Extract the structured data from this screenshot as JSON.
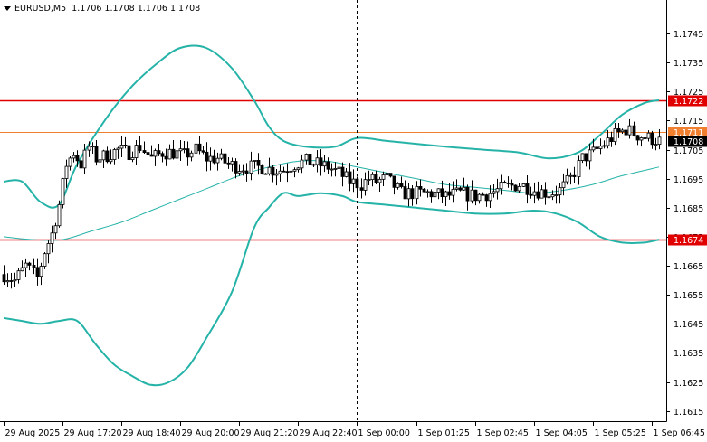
{
  "header": {
    "symbol": "EURUSD,M5",
    "ohlc": "1.1706 1.1708 1.1706 1.1708"
  },
  "chart_data": {
    "type": "candlestick",
    "symbol": "EURUSD",
    "timeframe": "M5",
    "ylim": [
      1.16115,
      1.17565
    ],
    "y_ticks": [
      "1.1745",
      "1.1735",
      "1.1725",
      "1.1715",
      "1.1705",
      "1.1695",
      "1.1685",
      "1.1675",
      "1.1665",
      "1.1655",
      "1.1645",
      "1.1635",
      "1.1625",
      "1.1615"
    ],
    "x_ticks": [
      "29 Aug 2025",
      "29 Aug 17:20",
      "29 Aug 18:40",
      "29 Aug 20:00",
      "29 Aug 21:20",
      "29 Aug 22:40",
      "1 Sep 00:00",
      "1 Sep 01:25",
      "1 Sep 02:45",
      "1 Sep 04:05",
      "1 Sep 05:25",
      "1 Sep 06:45"
    ],
    "x_tick_index": [
      0,
      16,
      32,
      48,
      64,
      80,
      96,
      112,
      128,
      144,
      160,
      176
    ],
    "bar_count": 179,
    "session_separator_index": 96,
    "price_levels": [
      {
        "value": 1.1722,
        "label": "1.1722",
        "color": "#e00000"
      },
      {
        "value": 1.1711,
        "label": "1.1711",
        "color": "#f08030"
      },
      {
        "value": 1.1708,
        "label": "1.1708",
        "color": "#000000"
      },
      {
        "value": 1.1674,
        "label": "1.1674",
        "color": "#e00000"
      }
    ],
    "bollinger_upper": [
      [
        0,
        1.1694
      ],
      [
        5,
        1.1694
      ],
      [
        10,
        1.1687
      ],
      [
        15,
        1.1686
      ],
      [
        20,
        1.17
      ],
      [
        28,
        1.1716
      ],
      [
        35,
        1.1727
      ],
      [
        42,
        1.1735
      ],
      [
        48,
        1.174
      ],
      [
        55,
        1.174
      ],
      [
        62,
        1.1733
      ],
      [
        68,
        1.1722
      ],
      [
        72,
        1.1713
      ],
      [
        76,
        1.1708
      ],
      [
        82,
        1.1706
      ],
      [
        90,
        1.1706
      ],
      [
        96,
        1.1709
      ],
      [
        104,
        1.1708
      ],
      [
        112,
        1.1707
      ],
      [
        120,
        1.1706
      ],
      [
        130,
        1.1705
      ],
      [
        140,
        1.1704
      ],
      [
        148,
        1.1702
      ],
      [
        156,
        1.1704
      ],
      [
        162,
        1.171
      ],
      [
        168,
        1.1717
      ],
      [
        174,
        1.1721
      ],
      [
        178,
        1.1722
      ]
    ],
    "bollinger_middle": [
      [
        0,
        1.1675
      ],
      [
        8,
        1.1674
      ],
      [
        16,
        1.1674
      ],
      [
        24,
        1.1677
      ],
      [
        32,
        1.168
      ],
      [
        40,
        1.1684
      ],
      [
        48,
        1.1688
      ],
      [
        56,
        1.1692
      ],
      [
        64,
        1.1696
      ],
      [
        72,
        1.1699
      ],
      [
        80,
        1.1701
      ],
      [
        88,
        1.1701
      ],
      [
        96,
        1.1699
      ],
      [
        104,
        1.1697
      ],
      [
        112,
        1.1695
      ],
      [
        120,
        1.1693
      ],
      [
        128,
        1.1692
      ],
      [
        136,
        1.1691
      ],
      [
        144,
        1.169
      ],
      [
        152,
        1.1691
      ],
      [
        160,
        1.1693
      ],
      [
        168,
        1.1696
      ],
      [
        178,
        1.1699
      ]
    ],
    "bollinger_lower": [
      [
        0,
        1.1647
      ],
      [
        5,
        1.1646
      ],
      [
        10,
        1.1645
      ],
      [
        15,
        1.1646
      ],
      [
        20,
        1.1646
      ],
      [
        25,
        1.1638
      ],
      [
        30,
        1.1631
      ],
      [
        35,
        1.1627
      ],
      [
        40,
        1.1624
      ],
      [
        45,
        1.1625
      ],
      [
        50,
        1.163
      ],
      [
        55,
        1.164
      ],
      [
        62,
        1.1656
      ],
      [
        68,
        1.1678
      ],
      [
        72,
        1.1685
      ],
      [
        76,
        1.169
      ],
      [
        80,
        1.1689
      ],
      [
        86,
        1.169
      ],
      [
        92,
        1.1689
      ],
      [
        96,
        1.1687
      ],
      [
        104,
        1.1686
      ],
      [
        112,
        1.1685
      ],
      [
        120,
        1.1684
      ],
      [
        128,
        1.1683
      ],
      [
        136,
        1.1683
      ],
      [
        144,
        1.1684
      ],
      [
        150,
        1.1683
      ],
      [
        156,
        1.168
      ],
      [
        162,
        1.1675
      ],
      [
        168,
        1.1673
      ],
      [
        174,
        1.1673
      ],
      [
        178,
        1.1674
      ]
    ],
    "close_path": [
      [
        0,
        1.1662
      ],
      [
        3,
        1.166
      ],
      [
        6,
        1.1665
      ],
      [
        9,
        1.1661
      ],
      [
        11,
        1.167
      ],
      [
        13,
        1.1676
      ],
      [
        15,
        1.1686
      ],
      [
        17,
        1.17
      ],
      [
        19,
        1.1704
      ],
      [
        21,
        1.17
      ],
      [
        23,
        1.1706
      ],
      [
        25,
        1.1702
      ],
      [
        28,
        1.1703
      ],
      [
        31,
        1.1705
      ],
      [
        34,
        1.1704
      ],
      [
        37,
        1.1706
      ],
      [
        40,
        1.1702
      ],
      [
        43,
        1.1704
      ],
      [
        46,
        1.1704
      ],
      [
        49,
        1.1703
      ],
      [
        52,
        1.1705
      ],
      [
        55,
        1.1702
      ],
      [
        58,
        1.1702
      ],
      [
        61,
        1.17
      ],
      [
        64,
        1.1699
      ],
      [
        67,
        1.1699
      ],
      [
        70,
        1.1699
      ],
      [
        73,
        1.1698
      ],
      [
        76,
        1.1698
      ],
      [
        79,
        1.17
      ],
      [
        82,
        1.1701
      ],
      [
        85,
        1.17
      ],
      [
        88,
        1.1699
      ],
      [
        91,
        1.1697
      ],
      [
        94,
        1.1694
      ],
      [
        97,
        1.1693
      ],
      [
        99,
        1.1695
      ],
      [
        101,
        1.1694
      ],
      [
        104,
        1.1695
      ],
      [
        108,
        1.169
      ],
      [
        112,
        1.169
      ],
      [
        116,
        1.169
      ],
      [
        120,
        1.1689
      ],
      [
        124,
        1.169
      ],
      [
        128,
        1.1689
      ],
      [
        132,
        1.169
      ],
      [
        136,
        1.1692
      ],
      [
        140,
        1.1693
      ],
      [
        144,
        1.1691
      ],
      [
        148,
        1.169
      ],
      [
        151,
        1.1691
      ],
      [
        154,
        1.1695
      ],
      [
        157,
        1.1702
      ],
      [
        160,
        1.1704
      ],
      [
        163,
        1.1707
      ],
      [
        166,
        1.171
      ],
      [
        169,
        1.1712
      ],
      [
        172,
        1.171
      ],
      [
        175,
        1.1709
      ],
      [
        178,
        1.1708
      ]
    ]
  },
  "colors": {
    "background": "#ffffff",
    "bullish_body": "#ffffff",
    "bearish_body": "#000000",
    "wick": "#000000",
    "bollinger_bands": "#25b3a8",
    "bollinger_middle": "#25b3a8",
    "level_red": "#e00000",
    "level_orange": "#f08030",
    "axis": "#000000",
    "grid": "none"
  }
}
